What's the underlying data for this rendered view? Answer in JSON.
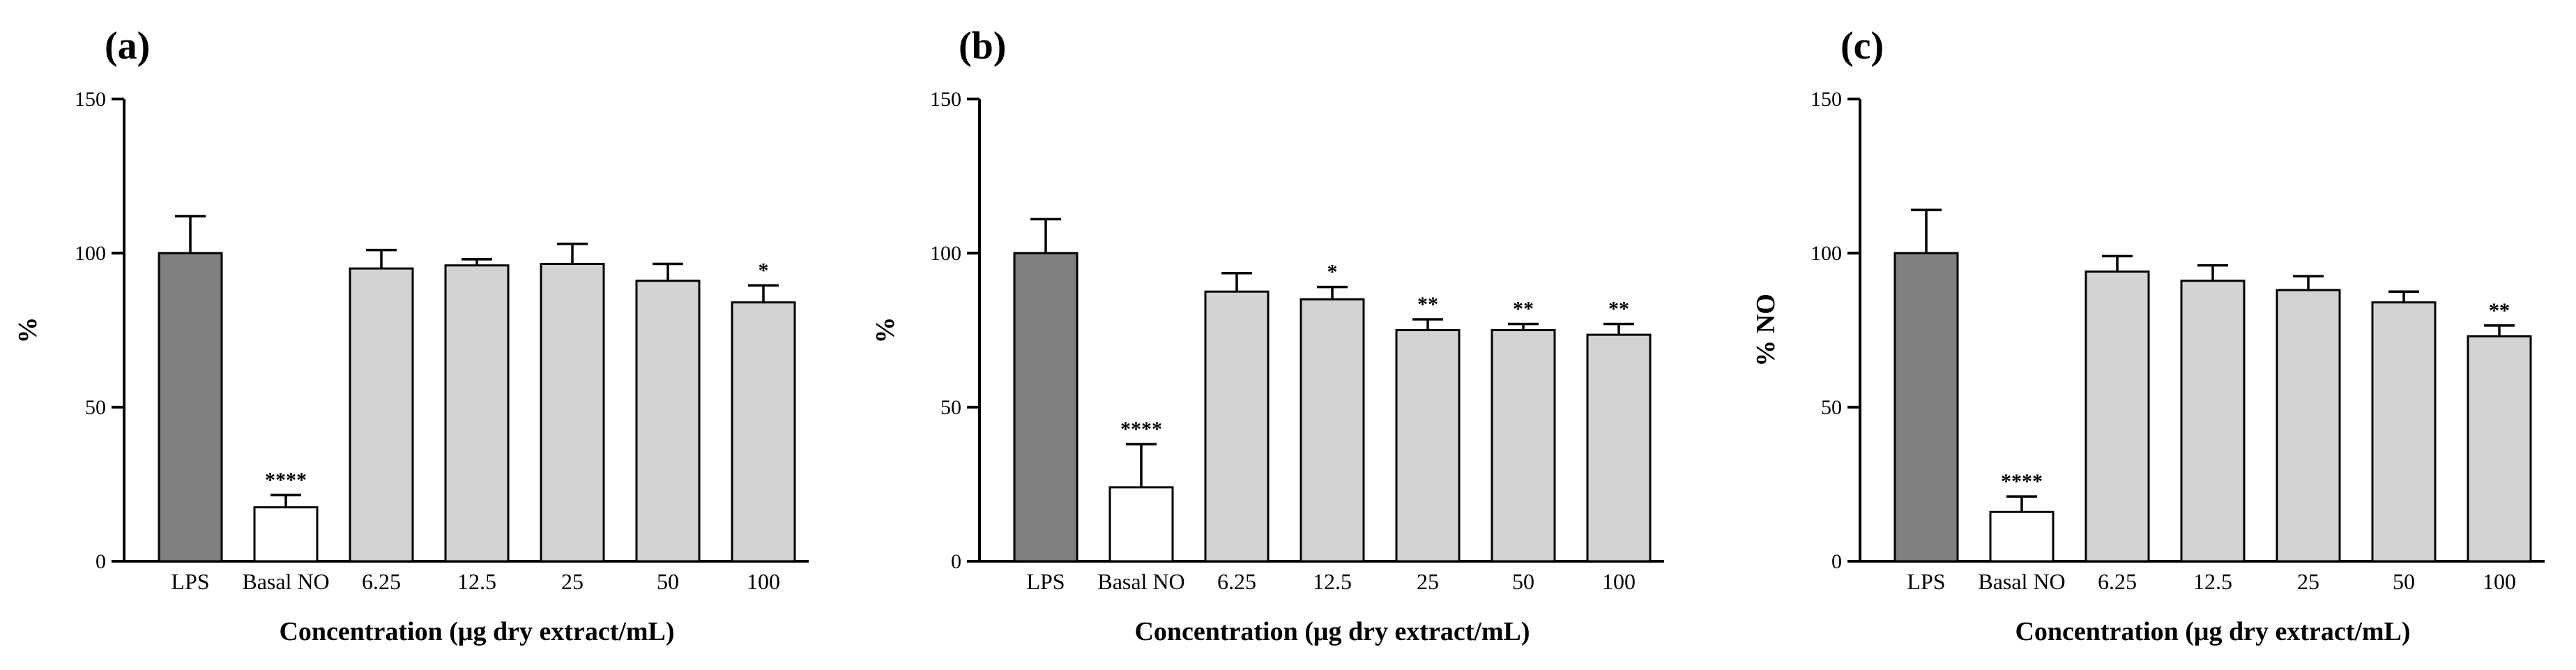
{
  "chart_data": [
    {
      "type": "bar",
      "panel_label": "(a)",
      "categories": [
        "LPS",
        "Basal NO",
        "6.25",
        "12.5",
        "25",
        "50",
        "100"
      ],
      "values": [
        100,
        17.5,
        95,
        96,
        96.5,
        91,
        84
      ],
      "errors": [
        12,
        4,
        6,
        2,
        6.5,
        5.5,
        5.5
      ],
      "significance": [
        "",
        "****",
        "",
        "",
        "",
        "",
        "*"
      ],
      "bar_colors": [
        "#808080",
        "#ffffff",
        "#d3d3d3",
        "#d3d3d3",
        "#d3d3d3",
        "#d3d3d3",
        "#d3d3d3"
      ],
      "ylabel": "%",
      "xlabel": "Concentration (μg dry extract/mL)",
      "ylim": [
        0,
        150
      ],
      "yticks": [
        0,
        50,
        100,
        150
      ],
      "grid": false
    },
    {
      "type": "bar",
      "panel_label": "(b)",
      "categories": [
        "LPS",
        "Basal NO",
        "6.25",
        "12.5",
        "25",
        "50",
        "100"
      ],
      "values": [
        100,
        24,
        87.5,
        85,
        75,
        75,
        73.5
      ],
      "errors": [
        11,
        14,
        6,
        4,
        3.5,
        2,
        3.5
      ],
      "significance": [
        "",
        "****",
        "",
        "*",
        "**",
        "**",
        "**"
      ],
      "bar_colors": [
        "#808080",
        "#ffffff",
        "#d3d3d3",
        "#d3d3d3",
        "#d3d3d3",
        "#d3d3d3",
        "#d3d3d3"
      ],
      "ylabel": "%",
      "xlabel": "Concentration (μg dry extract/mL)",
      "ylim": [
        0,
        150
      ],
      "yticks": [
        0,
        50,
        100,
        150
      ],
      "grid": false
    },
    {
      "type": "bar",
      "panel_label": "(c)",
      "categories": [
        "LPS",
        "Basal NO",
        "6.25",
        "12.5",
        "25",
        "50",
        "100"
      ],
      "values": [
        100,
        16,
        94,
        91,
        88,
        84,
        73
      ],
      "errors": [
        14,
        5,
        5,
        5,
        4.5,
        3.5,
        3.5
      ],
      "significance": [
        "",
        "****",
        "",
        "",
        "",
        "",
        "**"
      ],
      "bar_colors": [
        "#808080",
        "#ffffff",
        "#d3d3d3",
        "#d3d3d3",
        "#d3d3d3",
        "#d3d3d3",
        "#d3d3d3"
      ],
      "ylabel": "% NO",
      "xlabel": "Concentration (μg dry extract/mL)",
      "ylim": [
        0,
        150
      ],
      "yticks": [
        0,
        50,
        100,
        150
      ],
      "grid": false
    }
  ]
}
